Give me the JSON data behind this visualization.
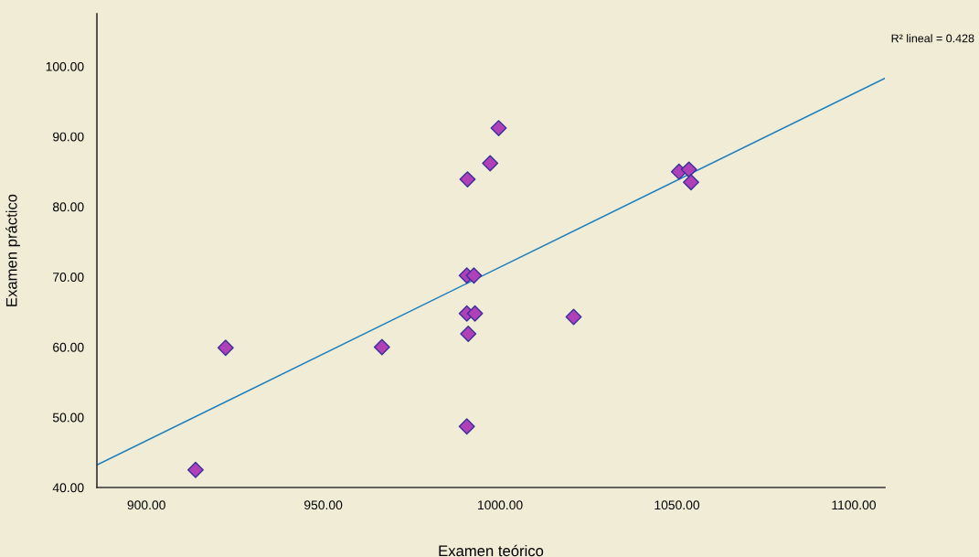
{
  "chart_data": {
    "type": "scatter",
    "xlabel": "Examen teórico",
    "ylabel": "Examen práctico",
    "xlim": [
      886,
      1108.8
    ],
    "ylim": [
      40,
      107.5
    ],
    "xticks": [
      {
        "value": 900,
        "label": "900.00"
      },
      {
        "value": 950,
        "label": "950.00"
      },
      {
        "value": 1000,
        "label": "1000.00"
      },
      {
        "value": 1050,
        "label": "1050.00"
      },
      {
        "value": 1100,
        "label": "1100.00"
      }
    ],
    "yticks": [
      {
        "value": 40,
        "label": "40.00"
      },
      {
        "value": 50,
        "label": "50.00"
      },
      {
        "value": 60,
        "label": "60.00"
      },
      {
        "value": 70,
        "label": "70.00"
      },
      {
        "value": 80,
        "label": "80.00"
      },
      {
        "value": 90,
        "label": "90.00"
      },
      {
        "value": 100,
        "label": "100.00"
      }
    ],
    "grid": false,
    "marker": "diamond",
    "series": [
      {
        "color": "#b040b8",
        "x": [
          913.9,
          922.4,
          966.6,
          990.6,
          991.0,
          990.6,
          992.9,
          990.6,
          992.6,
          990.8,
          997.2,
          999.6,
          1020.8,
          1050.6,
          1053.4,
          1054.0
        ],
        "values": [
          42.5,
          59.9,
          60.0,
          48.7,
          61.9,
          64.8,
          64.8,
          70.2,
          70.2,
          83.9,
          86.2,
          91.2,
          64.3,
          85.0,
          85.3,
          83.5
        ]
      },
      {
        "type": "line",
        "color": "#1a7fc0",
        "marker": "none",
        "x": [
          886,
          1108.8
        ],
        "values": [
          43.2,
          98.3
        ]
      }
    ],
    "annotations": [
      "R² lineal = 0.428"
    ]
  }
}
